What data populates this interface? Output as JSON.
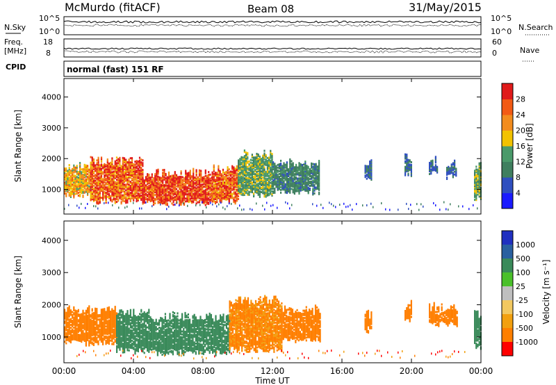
{
  "header": {
    "station": "McMurdo (fitACF)",
    "beam": "Beam 08",
    "date": "31/May/2015"
  },
  "top_panels": {
    "nsky_label": "N.Sky",
    "nsearch_label": "N.Search",
    "noise_ticks_left": [
      "10^5",
      "10^0"
    ],
    "noise_ticks_right": [
      "10^5",
      "10^0"
    ],
    "freq_label_1": "Freq.",
    "freq_label_2": "[MHz]",
    "freq_ticks": [
      "18",
      "8"
    ],
    "nave_label": "Nave",
    "nave_ticks": [
      "60",
      "0"
    ],
    "cpid_label": "CPID",
    "cpid_text": "normal (fast) 151 RF"
  },
  "colors": {
    "power_scale": [
      "#1a1aff",
      "#2f4fbf",
      "#3f7f5f",
      "#4a9a6a",
      "#f2c200",
      "#f28c1e",
      "#f25a14",
      "#e01a1a"
    ],
    "velocity_scale": [
      "#ff0000",
      "#ff7f00",
      "#f2a010",
      "#f2c860",
      "#bfbfbf",
      "#4ac02a",
      "#3a8a5a",
      "#2a60a0",
      "#2030c0"
    ]
  },
  "chart_data": [
    {
      "type": "heatmap",
      "parameter": "power",
      "ylabel": "Slant Range [km]",
      "y_ticks": [
        "1000",
        "2000",
        "3000",
        "4000"
      ],
      "ylim": [
        200,
        4600
      ],
      "colorbar_label": "Power [dB]",
      "colorbar_ticks": [
        "4",
        "8",
        "12",
        "16",
        "20",
        "24",
        "28"
      ],
      "colorbar_range": [
        0,
        32
      ],
      "x_range_hours": [
        0,
        24
      ],
      "echo_regions": [
        {
          "t_start": 0.0,
          "t_end": 1.5,
          "r_min": 800,
          "r_max": 1700,
          "value": 20
        },
        {
          "t_start": 1.5,
          "t_end": 4.5,
          "r_min": 600,
          "r_max": 1900,
          "value": 26
        },
        {
          "t_start": 4.5,
          "t_end": 8.5,
          "r_min": 550,
          "r_max": 1500,
          "value": 28
        },
        {
          "t_start": 8.5,
          "t_end": 10.0,
          "r_min": 600,
          "r_max": 1600,
          "value": 26
        },
        {
          "t_start": 10.0,
          "t_end": 12.0,
          "r_min": 800,
          "r_max": 2100,
          "value": 14
        },
        {
          "t_start": 12.0,
          "t_end": 14.7,
          "r_min": 900,
          "r_max": 1800,
          "value": 10
        },
        {
          "t_start": 17.3,
          "t_end": 17.7,
          "r_min": 1300,
          "r_max": 1800,
          "value": 8
        },
        {
          "t_start": 19.6,
          "t_end": 20.0,
          "r_min": 1500,
          "r_max": 2000,
          "value": 8
        },
        {
          "t_start": 21.0,
          "t_end": 21.5,
          "r_min": 1500,
          "r_max": 1900,
          "value": 8
        },
        {
          "t_start": 22.0,
          "t_end": 22.6,
          "r_min": 1400,
          "r_max": 1800,
          "value": 8
        },
        {
          "t_start": 23.6,
          "t_end": 24.0,
          "r_min": 700,
          "r_max": 1700,
          "value": 14
        }
      ]
    },
    {
      "type": "heatmap",
      "parameter": "velocity",
      "ylabel": "Slant Range [km]",
      "y_ticks": [
        "1000",
        "2000",
        "3000",
        "4000"
      ],
      "ylim": [
        200,
        4600
      ],
      "xlabel": "Time UT",
      "x_ticks": [
        "00:00",
        "04:00",
        "08:00",
        "12:00",
        "16:00",
        "20:00",
        "00:00"
      ],
      "colorbar_label": "Velocity [m s⁻¹]",
      "colorbar_ticks": [
        "1000",
        "500",
        "100",
        "25",
        "-25",
        "-100",
        "-500",
        "-1000"
      ],
      "echo_regions": [
        {
          "t_start": 0.0,
          "t_end": 3.0,
          "r_min": 800,
          "r_max": 1800,
          "value": -150
        },
        {
          "t_start": 3.0,
          "t_end": 5.0,
          "r_min": 550,
          "r_max": 1700,
          "value": 150
        },
        {
          "t_start": 5.0,
          "t_end": 9.5,
          "r_min": 500,
          "r_max": 1600,
          "value": 200
        },
        {
          "t_start": 9.5,
          "t_end": 12.5,
          "r_min": 600,
          "r_max": 2100,
          "value": -120
        },
        {
          "t_start": 12.5,
          "t_end": 14.7,
          "r_min": 900,
          "r_max": 1800,
          "value": -150
        },
        {
          "t_start": 17.3,
          "t_end": 17.7,
          "r_min": 1200,
          "r_max": 1700,
          "value": -200
        },
        {
          "t_start": 19.6,
          "t_end": 20.0,
          "r_min": 1500,
          "r_max": 2000,
          "value": -200
        },
        {
          "t_start": 21.0,
          "t_end": 22.6,
          "r_min": 1400,
          "r_max": 1900,
          "value": -200
        },
        {
          "t_start": 23.6,
          "t_end": 24.0,
          "r_min": 700,
          "r_max": 1700,
          "value": 150
        }
      ]
    }
  ]
}
